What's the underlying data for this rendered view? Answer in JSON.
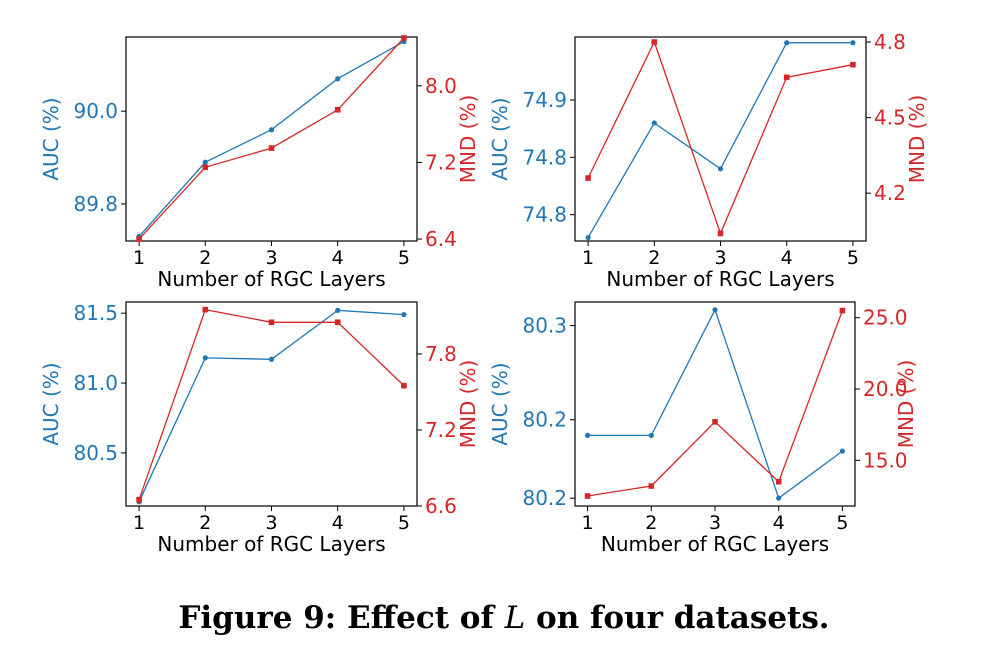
{
  "caption": {
    "prefix": "Figure 9: Effect of ",
    "symbol": "L",
    "suffix": " on four datasets."
  },
  "colors": {
    "auc": "#1f77b4",
    "mnd": "#d62728"
  },
  "chart_data": [
    {
      "type": "line",
      "xlabel": "Number of RGC Layers",
      "x": [
        1,
        2,
        3,
        4,
        5
      ],
      "xticks": [
        "1",
        "2",
        "3",
        "4",
        "5"
      ],
      "series": [
        {
          "name": "AUC (%)",
          "axis": "left",
          "values": [
            89.73,
            89.89,
            89.96,
            90.07,
            90.15
          ]
        },
        {
          "name": "MND (%)",
          "axis": "right",
          "values": [
            6.4,
            7.15,
            7.35,
            7.75,
            8.5
          ]
        }
      ],
      "ylabel": "AUC (%)",
      "ylim": [
        89.72,
        90.16
      ],
      "yticks": [
        89.8,
        90.0
      ],
      "yticklabels": [
        "89.8",
        "90.0"
      ],
      "y2label": "MND (%)",
      "y2lim": [
        6.38,
        8.51
      ],
      "y2ticks": [
        6.4,
        7.2,
        8.0
      ],
      "y2ticklabels": [
        "6.4",
        "7.2",
        "8.0"
      ]
    },
    {
      "type": "line",
      "xlabel": "Number of RGC Layers",
      "x": [
        1,
        2,
        3,
        4,
        5
      ],
      "xticks": [
        "1",
        "2",
        "3",
        "4",
        "5"
      ],
      "series": [
        {
          "name": "AUC (%)",
          "axis": "left",
          "values": [
            74.755,
            74.855,
            74.815,
            74.925,
            74.925
          ]
        },
        {
          "name": "MND (%)",
          "axis": "right",
          "values": [
            4.26,
            4.8,
            4.04,
            4.66,
            4.71
          ]
        }
      ],
      "ylabel": "AUC (%)",
      "ylim": [
        74.752,
        74.93
      ],
      "yticks": [
        74.775,
        74.825,
        74.875
      ],
      "yticklabels": [
        "74.8",
        "74.8",
        "74.9"
      ],
      "y2label": "MND (%)",
      "y2lim": [
        4.01,
        4.82
      ],
      "y2ticks": [
        4.2,
        4.5,
        4.8
      ],
      "y2ticklabels": [
        "4.2",
        "4.5",
        "4.8"
      ]
    },
    {
      "type": "line",
      "xlabel": "Number of RGC Layers",
      "x": [
        1,
        2,
        3,
        4,
        5
      ],
      "xticks": [
        "1",
        "2",
        "3",
        "4",
        "5"
      ],
      "series": [
        {
          "name": "AUC (%)",
          "axis": "left",
          "values": [
            80.15,
            81.18,
            81.17,
            81.52,
            81.49
          ]
        },
        {
          "name": "MND (%)",
          "axis": "right",
          "values": [
            6.65,
            8.15,
            8.05,
            8.05,
            7.55
          ]
        }
      ],
      "ylabel": "AUC (%)",
      "ylim": [
        80.12,
        81.58
      ],
      "yticks": [
        80.5,
        81.0,
        81.5
      ],
      "yticklabels": [
        "80.5",
        "81.0",
        "81.5"
      ],
      "y2label": "MND (%)",
      "y2lim": [
        6.6,
        8.21
      ],
      "y2ticks": [
        6.6,
        7.2,
        7.8
      ],
      "y2ticklabels": [
        "6.6",
        "7.2",
        "7.8"
      ]
    },
    {
      "type": "line",
      "xlabel": "Number of RGC Layers",
      "x": [
        1,
        2,
        3,
        4,
        5
      ],
      "xticks": [
        "1",
        "2",
        "3",
        "4",
        "5"
      ],
      "series": [
        {
          "name": "AUC (%)",
          "axis": "left",
          "values": [
            80.24,
            80.24,
            80.32,
            80.2,
            80.23
          ]
        },
        {
          "name": "MND (%)",
          "axis": "right",
          "values": [
            12.5,
            13.2,
            17.7,
            13.5,
            25.5
          ]
        }
      ],
      "ylabel": "AUC (%)",
      "ylim": [
        80.195,
        80.325
      ],
      "yticks": [
        80.2,
        80.25,
        80.31
      ],
      "yticklabels": [
        "80.2",
        "80.2",
        "80.3"
      ],
      "y2label": "MND (%)",
      "y2lim": [
        11.8,
        26.1
      ],
      "y2ticks": [
        15,
        20,
        25
      ],
      "y2ticklabels": [
        "15.0",
        "20.0",
        "25.0"
      ]
    }
  ]
}
